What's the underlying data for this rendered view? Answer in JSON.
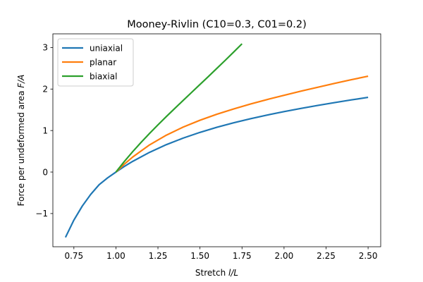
{
  "chart_data": {
    "type": "line",
    "title": "Mooney-Rivlin (C10=0.3, C01=0.2)",
    "xlabel": "Stretch l/L",
    "xlabel_parts": {
      "prefix": "Stretch ",
      "italic": "l/L"
    },
    "ylabel": "Force per undeformed area F/A",
    "ylabel_parts": {
      "prefix": "Force per undeformed area ",
      "italic": "F/A"
    },
    "xlim": [
      0.625,
      2.575
    ],
    "ylim": [
      -1.8,
      3.33
    ],
    "xticks": [
      0.75,
      1.0,
      1.25,
      1.5,
      1.75,
      2.0,
      2.25,
      2.5
    ],
    "xtick_labels": [
      "0.75",
      "1.00",
      "1.25",
      "1.50",
      "1.75",
      "2.00",
      "2.25",
      "2.50"
    ],
    "yticks": [
      -1,
      0,
      1,
      2,
      3
    ],
    "ytick_labels": [
      "−1",
      "0",
      "1",
      "2",
      "3"
    ],
    "legend_position": "top-left",
    "series": [
      {
        "name": "uniaxial",
        "color": "#1f77b4",
        "x": [
          0.7,
          0.75,
          0.8,
          0.85,
          0.9,
          0.95,
          1.0,
          1.05,
          1.1,
          1.2,
          1.3,
          1.4,
          1.5,
          1.6,
          1.7,
          1.8,
          1.9,
          2.0,
          2.1,
          2.2,
          2.3,
          2.4,
          2.5
        ],
        "y": [
          -1.574,
          -1.157,
          -0.819,
          -0.539,
          -0.305,
          -0.142,
          0.0,
          0.135,
          0.258,
          0.475,
          0.66,
          0.818,
          0.956,
          1.078,
          1.186,
          1.284,
          1.373,
          1.456,
          1.533,
          1.605,
          1.673,
          1.738,
          1.8
        ]
      },
      {
        "name": "planar",
        "color": "#ff7f0e",
        "x": [
          1.0,
          1.05,
          1.1,
          1.2,
          1.3,
          1.4,
          1.5,
          1.6,
          1.7,
          1.8,
          1.9,
          2.0,
          2.1,
          2.2,
          2.3,
          2.4,
          2.5
        ],
        "y": [
          0.0,
          0.19,
          0.363,
          0.654,
          0.889,
          1.083,
          1.248,
          1.392,
          1.52,
          1.638,
          1.748,
          1.85,
          1.949,
          2.043,
          2.135,
          2.224,
          2.31
        ]
      },
      {
        "name": "biaxial",
        "color": "#2ca02c",
        "x": [
          1.0,
          1.05,
          1.1,
          1.15,
          1.2,
          1.25,
          1.3,
          1.35,
          1.4,
          1.45,
          1.5,
          1.55,
          1.6,
          1.65,
          1.7,
          1.75
        ],
        "y": [
          0.0,
          0.254,
          0.492,
          0.717,
          0.931,
          1.137,
          1.337,
          1.533,
          1.726,
          1.918,
          2.11,
          2.302,
          2.496,
          2.691,
          2.889,
          3.09
        ]
      }
    ]
  }
}
